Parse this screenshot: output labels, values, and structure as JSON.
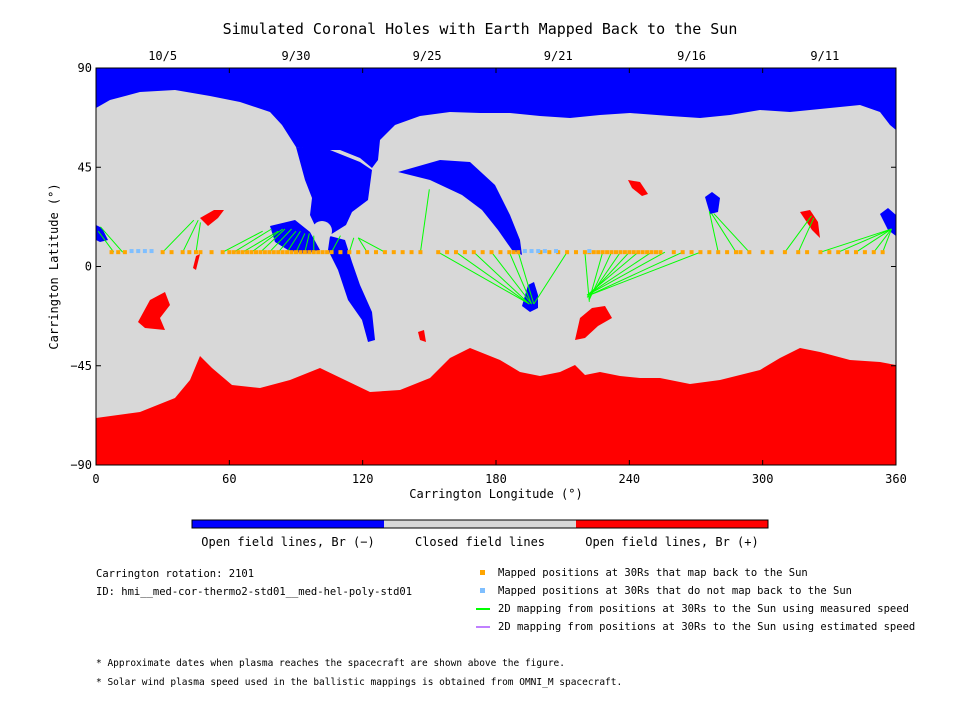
{
  "chart_data": {
    "type": "map",
    "title": "Simulated Coronal Holes with Earth Mapped Back to the Sun",
    "xlabel": "Carrington Longitude (°)",
    "ylabel": "Carrington Latitude (°)",
    "xlim": [
      0,
      360
    ],
    "ylim": [
      -90,
      90
    ],
    "xticks": [
      "0",
      "60",
      "120",
      "180",
      "240",
      "300",
      "360"
    ],
    "yticks": [
      "90",
      "45",
      "0",
      "−45",
      "−90"
    ],
    "date_ticks": [
      {
        "label": "10/5",
        "lon": 30
      },
      {
        "label": "9/30",
        "lon": 90
      },
      {
        "label": "9/25",
        "lon": 149
      },
      {
        "label": "9/21",
        "lon": 208
      },
      {
        "label": "9/16",
        "lon": 268
      },
      {
        "label": "9/11",
        "lon": 328
      }
    ],
    "colors": {
      "open_negative": "#0000ff",
      "closed": "#d8d8d8",
      "open_positive": "#ff0000",
      "mapped_back": "#ffa500",
      "not_mapped": "#7fbfff",
      "measured_speed": "#00ff00",
      "estimated_speed": "#c080ff"
    },
    "colorbar": [
      {
        "label": "Open field lines, Br (−)",
        "color": "#0000ff"
      },
      {
        "label": "Closed field lines",
        "color": "#d8d8d8"
      },
      {
        "label": "Open field lines, Br (+)",
        "color": "#ff0000"
      }
    ],
    "mapped_back_lons": [
      7,
      10,
      13,
      30,
      34,
      39,
      42,
      45,
      47,
      52,
      57,
      60,
      62,
      64,
      66,
      68,
      70,
      72,
      74,
      76,
      78,
      80,
      82,
      84,
      86,
      88,
      90,
      92,
      94,
      96,
      98,
      100,
      102,
      104,
      106,
      110,
      114,
      118,
      122,
      126,
      130,
      134,
      138,
      142,
      146,
      154,
      158,
      162,
      166,
      170,
      174,
      178,
      182,
      186,
      188,
      190,
      200,
      204,
      208,
      212,
      216,
      220,
      222,
      224,
      226,
      228,
      230,
      232,
      234,
      236,
      238,
      240,
      242,
      244,
      246,
      248,
      250,
      252,
      254,
      260,
      264,
      268,
      272,
      276,
      280,
      284,
      288,
      290,
      294,
      300,
      304,
      310,
      316,
      320,
      326,
      330,
      334,
      338,
      342,
      346,
      350,
      354
    ],
    "mapped_back_lat": 6.5,
    "not_mapped_lons": [
      16,
      19,
      22,
      25,
      193,
      196,
      199,
      202,
      207,
      222
    ],
    "not_mapped_lat": 7,
    "measured_speed_mappings": [
      {
        "from": [
          8,
          6.5
        ],
        "to": [
          1,
          16
        ]
      },
      {
        "from": [
          12,
          6.5
        ],
        "to": [
          2,
          18
        ]
      },
      {
        "from": [
          30,
          6.5
        ],
        "to": [
          44,
          21
        ]
      },
      {
        "from": [
          39,
          6.5
        ],
        "to": [
          46,
          21
        ]
      },
      {
        "from": [
          45,
          6.5
        ],
        "to": [
          47,
          20
        ]
      },
      {
        "from": [
          57,
          6.5
        ],
        "to": [
          75,
          16
        ]
      },
      {
        "from": [
          62,
          6.5
        ],
        "to": [
          79,
          17
        ]
      },
      {
        "from": [
          66,
          6.5
        ],
        "to": [
          82,
          16
        ]
      },
      {
        "from": [
          70,
          6.5
        ],
        "to": [
          84,
          17
        ]
      },
      {
        "from": [
          74,
          6.5
        ],
        "to": [
          85,
          17
        ]
      },
      {
        "from": [
          78,
          6.5
        ],
        "to": [
          88,
          17
        ]
      },
      {
        "from": [
          82,
          6.5
        ],
        "to": [
          90,
          16
        ]
      },
      {
        "from": [
          86,
          6.5
        ],
        "to": [
          92,
          16
        ]
      },
      {
        "from": [
          90,
          6.5
        ],
        "to": [
          94,
          15
        ]
      },
      {
        "from": [
          94,
          6.5
        ],
        "to": [
          96,
          15
        ]
      },
      {
        "from": [
          98,
          6.5
        ],
        "to": [
          98,
          14
        ]
      },
      {
        "from": [
          106,
          6.5
        ],
        "to": [
          110,
          14
        ]
      },
      {
        "from": [
          114,
          6.5
        ],
        "to": [
          116,
          13
        ]
      },
      {
        "from": [
          122,
          6.5
        ],
        "to": [
          118,
          13
        ]
      },
      {
        "from": [
          130,
          6.5
        ],
        "to": [
          118,
          13
        ]
      },
      {
        "from": [
          146,
          6.5
        ],
        "to": [
          150,
          35
        ]
      },
      {
        "from": [
          154,
          6.5
        ],
        "to": [
          195,
          -17
        ]
      },
      {
        "from": [
          162,
          6.5
        ],
        "to": [
          195,
          -17
        ]
      },
      {
        "from": [
          170,
          6.5
        ],
        "to": [
          195,
          -17
        ]
      },
      {
        "from": [
          178,
          6.5
        ],
        "to": [
          196,
          -17
        ]
      },
      {
        "from": [
          186,
          6.5
        ],
        "to": [
          196,
          -17
        ]
      },
      {
        "from": [
          190,
          6.5
        ],
        "to": [
          197,
          -17
        ]
      },
      {
        "from": [
          212,
          6.5
        ],
        "to": [
          197,
          -17
        ]
      },
      {
        "from": [
          220,
          6.5
        ],
        "to": [
          222,
          -16
        ]
      },
      {
        "from": [
          228,
          6.5
        ],
        "to": [
          222,
          -15
        ]
      },
      {
        "from": [
          232,
          6.5
        ],
        "to": [
          222,
          -15
        ]
      },
      {
        "from": [
          236,
          6.5
        ],
        "to": [
          222,
          -14
        ]
      },
      {
        "from": [
          240,
          6.5
        ],
        "to": [
          221,
          -14
        ]
      },
      {
        "from": [
          244,
          6.5
        ],
        "to": [
          221,
          -13
        ]
      },
      {
        "from": [
          250,
          6.5
        ],
        "to": [
          221,
          -13
        ]
      },
      {
        "from": [
          256,
          6.5
        ],
        "to": [
          221,
          -13
        ]
      },
      {
        "from": [
          264,
          6.5
        ],
        "to": [
          222,
          -13
        ]
      },
      {
        "from": [
          272,
          6.5
        ],
        "to": [
          222,
          -13
        ]
      },
      {
        "from": [
          280,
          6.5
        ],
        "to": [
          276,
          25
        ]
      },
      {
        "from": [
          288,
          6.5
        ],
        "to": [
          277,
          24
        ]
      },
      {
        "from": [
          294,
          6.5
        ],
        "to": [
          278,
          24
        ]
      },
      {
        "from": [
          310,
          6.5
        ],
        "to": [
          322,
          23
        ]
      },
      {
        "from": [
          316,
          6.5
        ],
        "to": [
          323,
          22
        ]
      },
      {
        "from": [
          326,
          6.5
        ],
        "to": [
          358,
          17
        ]
      },
      {
        "from": [
          334,
          6.5
        ],
        "to": [
          358,
          17
        ]
      },
      {
        "from": [
          342,
          6.5
        ],
        "to": [
          358,
          17
        ]
      },
      {
        "from": [
          350,
          6.5
        ],
        "to": [
          358,
          17
        ]
      },
      {
        "from": [
          354,
          6.5
        ],
        "to": [
          358,
          17
        ]
      }
    ],
    "legend": [
      {
        "label": "Mapped positions at 30Rs that map back to the Sun",
        "marker": "square",
        "color": "#ffa500"
      },
      {
        "label": "Mapped positions at 30Rs that do not map back to the Sun",
        "marker": "square",
        "color": "#7fbfff"
      },
      {
        "label": "2D mapping from positions at 30Rs to the Sun using measured speed",
        "marker": "line",
        "color": "#00ff00"
      },
      {
        "label": "2D mapping from positions at 30Rs to the Sun using estimated speed",
        "marker": "line",
        "color": "#c080ff"
      }
    ]
  },
  "info": {
    "rotation": "Carrington rotation: 2101",
    "id": "ID: hmi__med-cor-thermo2-std01__med-hel-poly-std01"
  },
  "notes": [
    "* Approximate dates when plasma reaches the spacecraft are shown above the figure.",
    "* Solar wind plasma speed used in the ballistic mappings is obtained from OMNI_M spacecraft."
  ]
}
